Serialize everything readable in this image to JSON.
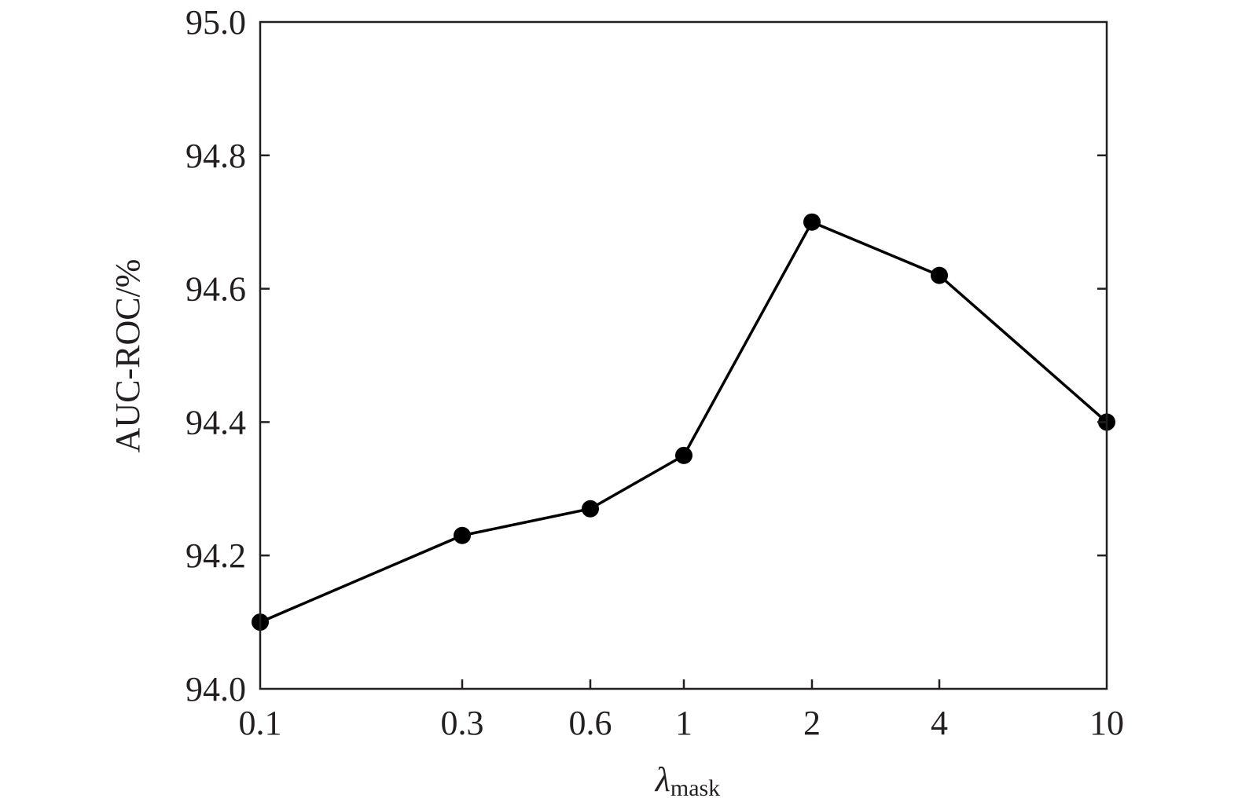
{
  "chart_data": {
    "type": "line",
    "title": "",
    "ylabel": "AUC-ROC/%",
    "xlabel": {
      "symbol": "λ",
      "subscript": "mask"
    },
    "categories": [
      "0.1",
      "0.3",
      "0.6",
      "1",
      "2",
      "4",
      "10"
    ],
    "x_scale": "categorical",
    "ylim": [
      94.0,
      95.0
    ],
    "yticks": [
      "94.0",
      "94.2",
      "94.4",
      "94.6",
      "94.8",
      "95.0"
    ],
    "grid": false,
    "legend": "none",
    "series": [
      {
        "values": [
          94.1,
          94.23,
          94.27,
          94.35,
          94.7,
          94.62,
          94.4
        ],
        "color": "#000000",
        "marker": "filled-circle"
      }
    ]
  }
}
